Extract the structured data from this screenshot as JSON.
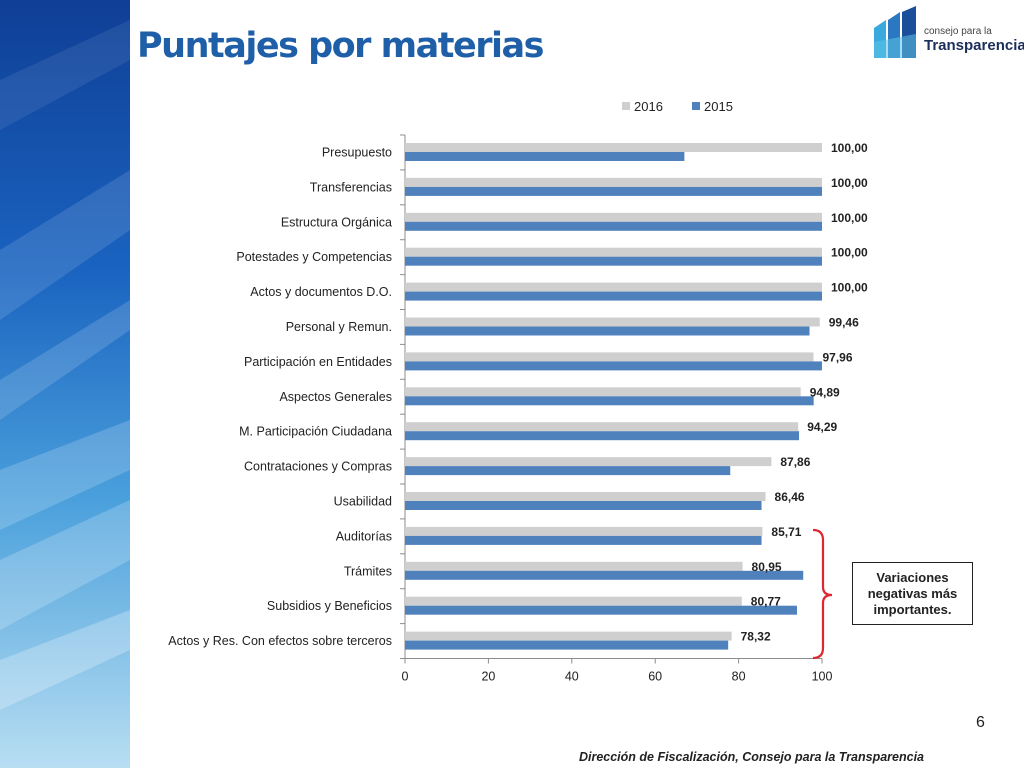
{
  "slide": {
    "title": "Puntajes por materias",
    "page_number": "6",
    "footer": "Dirección de Fiscalización, Consejo para la Transparencia",
    "callout": "Variaciones negativas más importantes."
  },
  "logo": {
    "small_text": "consejo para la",
    "big_text": "Transparencia"
  },
  "colors": {
    "series_2016": "#cfcfcf",
    "series_2015": "#4f81bd",
    "title": "#1f5fa8",
    "bracket": "#e0262e"
  },
  "chart_data": {
    "type": "bar",
    "orientation": "horizontal",
    "title": "",
    "xlabel": "",
    "ylabel": "",
    "xlim": [
      0,
      100
    ],
    "x_ticks": [
      "0",
      "20",
      "40",
      "60",
      "80",
      "100"
    ],
    "legend_position": "top-right",
    "categories": [
      "Presupuesto",
      "Transferencias",
      "Estructura Orgánica",
      "Potestades y Competencias",
      "Actos y documentos D.O.",
      "Personal y Remun.",
      "Participación en Entidades",
      "Aspectos Generales",
      "M. Participación Ciudadana",
      "Contrataciones y Compras",
      "Usabilidad",
      "Auditorías",
      "Trámites",
      "Subsidios y Beneficios",
      "Actos y Res. Con efectos sobre terceros"
    ],
    "series": [
      {
        "name": "2016",
        "values": [
          100,
          100,
          100,
          100,
          100,
          99.46,
          97.96,
          94.89,
          94.29,
          87.86,
          86.46,
          85.71,
          80.95,
          80.77,
          78.32
        ],
        "labels": [
          "100,00",
          "100,00",
          "100,00",
          "100,00",
          "100,00",
          "99,46",
          "97,96",
          "94,89",
          "94,29",
          "87,86",
          "86,46",
          "85,71",
          "80,95",
          "80,77",
          "78,32"
        ]
      },
      {
        "name": "2015",
        "values": [
          67,
          100,
          100,
          100,
          100,
          97,
          100,
          98,
          94.5,
          78,
          85.5,
          85.5,
          95.5,
          94,
          77.5
        ]
      }
    ]
  }
}
